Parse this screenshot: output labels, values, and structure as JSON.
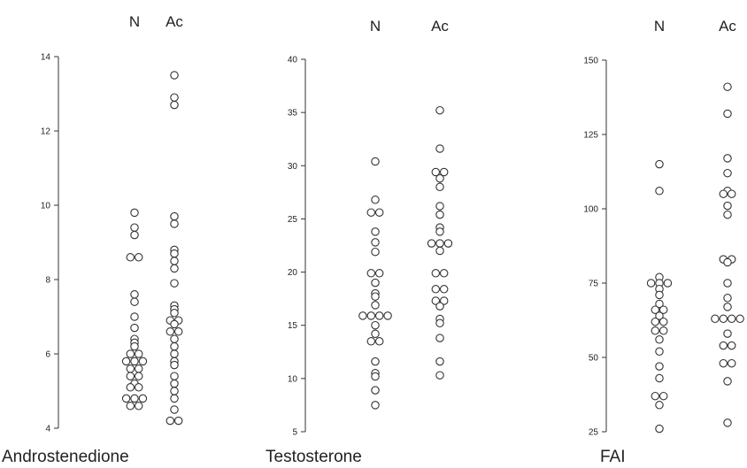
{
  "chart_data": [
    {
      "type": "scatter",
      "title": "Androstenedione",
      "categories": [
        "N",
        "Ac"
      ],
      "ylim": [
        4,
        14
      ],
      "yticks": [
        4,
        6,
        8,
        10,
        12,
        14
      ],
      "grid": false,
      "series": [
        {
          "name": "N",
          "values": [
            9.8,
            9.4,
            9.2,
            8.6,
            8.6,
            7.6,
            7.4,
            7.0,
            6.7,
            6.4,
            6.3,
            6.2,
            6.0,
            6.0,
            5.8,
            5.8,
            5.8,
            5.6,
            5.6,
            5.4,
            5.4,
            5.2,
            5.1,
            5.1,
            4.8,
            4.8,
            4.8,
            4.6,
            4.6
          ]
        },
        {
          "name": "Ac",
          "values": [
            13.5,
            12.9,
            12.7,
            9.7,
            9.5,
            8.8,
            8.7,
            8.5,
            8.3,
            7.9,
            7.3,
            7.2,
            7.1,
            6.9,
            6.9,
            6.8,
            6.6,
            6.6,
            6.4,
            6.2,
            6.0,
            5.8,
            5.7,
            5.4,
            5.2,
            5.0,
            4.8,
            4.5,
            4.2,
            4.2
          ]
        }
      ]
    },
    {
      "type": "scatter",
      "title": "Testosterone",
      "categories": [
        "N",
        "Ac"
      ],
      "ylim": [
        5,
        40
      ],
      "yticks": [
        5,
        10,
        15,
        20,
        25,
        30,
        35,
        40
      ],
      "grid": false,
      "series": [
        {
          "name": "N",
          "values": [
            30.4,
            26.8,
            25.6,
            25.6,
            23.8,
            22.8,
            21.9,
            19.9,
            19.9,
            19.0,
            18.0,
            17.7,
            16.9,
            15.9,
            15.9,
            15.9,
            15.9,
            15.0,
            14.2,
            13.5,
            13.5,
            11.6,
            10.5,
            10.2,
            8.9,
            7.5
          ]
        },
        {
          "name": "Ac",
          "values": [
            35.2,
            31.6,
            29.4,
            29.4,
            28.8,
            28.0,
            26.2,
            25.4,
            24.2,
            23.8,
            22.7,
            22.7,
            22.7,
            22.0,
            19.9,
            19.9,
            18.4,
            18.4,
            17.3,
            17.3,
            16.8,
            15.6,
            15.2,
            13.8,
            11.6,
            10.3
          ]
        }
      ]
    },
    {
      "type": "scatter",
      "title": "FAI",
      "categories": [
        "N",
        "Ac"
      ],
      "ylim": [
        25,
        150
      ],
      "yticks": [
        25,
        50,
        75,
        100,
        125,
        150
      ],
      "grid": false,
      "series": [
        {
          "name": "N",
          "values": [
            115,
            106,
            77,
            75,
            75,
            75,
            73,
            71,
            68,
            66,
            66,
            64,
            62,
            62,
            59,
            59,
            56,
            52,
            47,
            43,
            37,
            37,
            34,
            26
          ]
        },
        {
          "name": "Ac",
          "values": [
            141,
            132,
            117,
            112,
            106,
            105,
            105,
            101,
            98,
            83,
            83,
            82,
            75,
            70,
            67,
            63,
            63,
            63,
            63,
            58,
            54,
            54,
            48,
            48,
            42,
            28
          ]
        }
      ]
    }
  ]
}
